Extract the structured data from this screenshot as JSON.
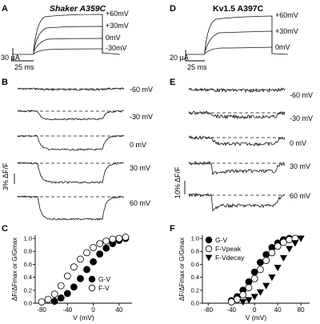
{
  "panels": {
    "A": {
      "letter": "A",
      "title": "Shaker A359C",
      "voltages": [
        "+60mV",
        "+30mV",
        "0mV",
        "-30mV"
      ],
      "current_scale": "30 μA",
      "time_scale": "25 ms"
    },
    "B": {
      "letter": "B",
      "voltages": [
        "-60 mV",
        "-30 mV",
        "0 mV",
        "30 mV",
        "60 mV"
      ],
      "fluor_scale": "3% ΔF/F"
    },
    "C": {
      "letter": "C"
    },
    "D": {
      "letter": "D",
      "title": "Kv1.5 A397C",
      "voltages": [
        "+60mV",
        "+30mV",
        "0mV"
      ],
      "current_scale": "20 μA",
      "time_scale": "25 ms"
    },
    "E": {
      "letter": "E",
      "voltages": [
        "-60 mV",
        "-30 mV",
        "0 mV",
        "30 mV",
        "60 mV"
      ],
      "fluor_scale": "10% ΔF/F"
    },
    "F": {
      "letter": "F"
    }
  },
  "chart_data": [
    {
      "type": "scatter",
      "panel": "C",
      "xlabel": "V (mV)",
      "ylabel": "ΔF/ΔFmax or G/Gmax",
      "xlim": [
        -90,
        60
      ],
      "ylim": [
        0,
        1.05
      ],
      "xticks": [
        "-80",
        "-40",
        "0",
        "40"
      ],
      "yticks": [
        "0.0",
        "0.2",
        "0.4",
        "0.6",
        "0.8",
        "1.0"
      ],
      "legend_position": "bottom-right",
      "series": [
        {
          "name": "G-V",
          "marker": "filled-circle",
          "x": [
            -60,
            -50,
            -40,
            -30,
            -20,
            -10,
            0,
            10,
            20,
            30,
            40,
            50
          ],
          "y": [
            0.03,
            0.08,
            0.15,
            0.25,
            0.38,
            0.52,
            0.64,
            0.76,
            0.85,
            0.92,
            0.97,
            1.0
          ]
        },
        {
          "name": "F-V",
          "marker": "open-circle",
          "x": [
            -80,
            -70,
            -60,
            -50,
            -40,
            -30,
            -20,
            -10,
            0,
            10,
            20,
            30,
            40,
            50
          ],
          "y": [
            0.02,
            0.06,
            0.14,
            0.27,
            0.42,
            0.56,
            0.68,
            0.78,
            0.86,
            0.92,
            0.96,
            0.99,
            1.0,
            1.02
          ]
        }
      ]
    },
    {
      "type": "scatter",
      "panel": "F",
      "xlabel": "V (mV)",
      "ylabel": "ΔF/ΔFmax or G/Gmax",
      "xlim": [
        -90,
        95
      ],
      "ylim": [
        0,
        1.05
      ],
      "xticks": [
        "-80",
        "-40",
        "0",
        "40",
        "80"
      ],
      "yticks": [
        "0.0",
        "0.2",
        "0.4",
        "0.6",
        "0.8",
        "1.0"
      ],
      "legend_position": "top-left",
      "series": [
        {
          "name": "G-V",
          "marker": "filled-circle",
          "x": [
            -40,
            -30,
            -20,
            -10,
            0,
            10,
            20,
            30,
            40,
            50,
            60
          ],
          "y": [
            0.04,
            0.1,
            0.2,
            0.33,
            0.48,
            0.63,
            0.75,
            0.86,
            0.93,
            0.98,
            1.0
          ]
        },
        {
          "name": "F-Vpeak",
          "marker": "open-circle",
          "x": [
            -40,
            -30,
            -20,
            -10,
            0,
            10,
            20,
            30,
            40,
            50,
            60,
            70
          ],
          "y": [
            0.02,
            0.06,
            0.13,
            0.24,
            0.38,
            0.52,
            0.66,
            0.78,
            0.88,
            0.94,
            0.98,
            1.0
          ]
        },
        {
          "name": "F-Vdecay",
          "marker": "filled-triangle-down",
          "x": [
            -20,
            -10,
            0,
            10,
            20,
            30,
            40,
            50,
            60,
            70,
            80
          ],
          "y": [
            0.02,
            0.05,
            0.1,
            0.17,
            0.27,
            0.4,
            0.55,
            0.7,
            0.84,
            0.93,
            1.0
          ]
        }
      ]
    }
  ]
}
